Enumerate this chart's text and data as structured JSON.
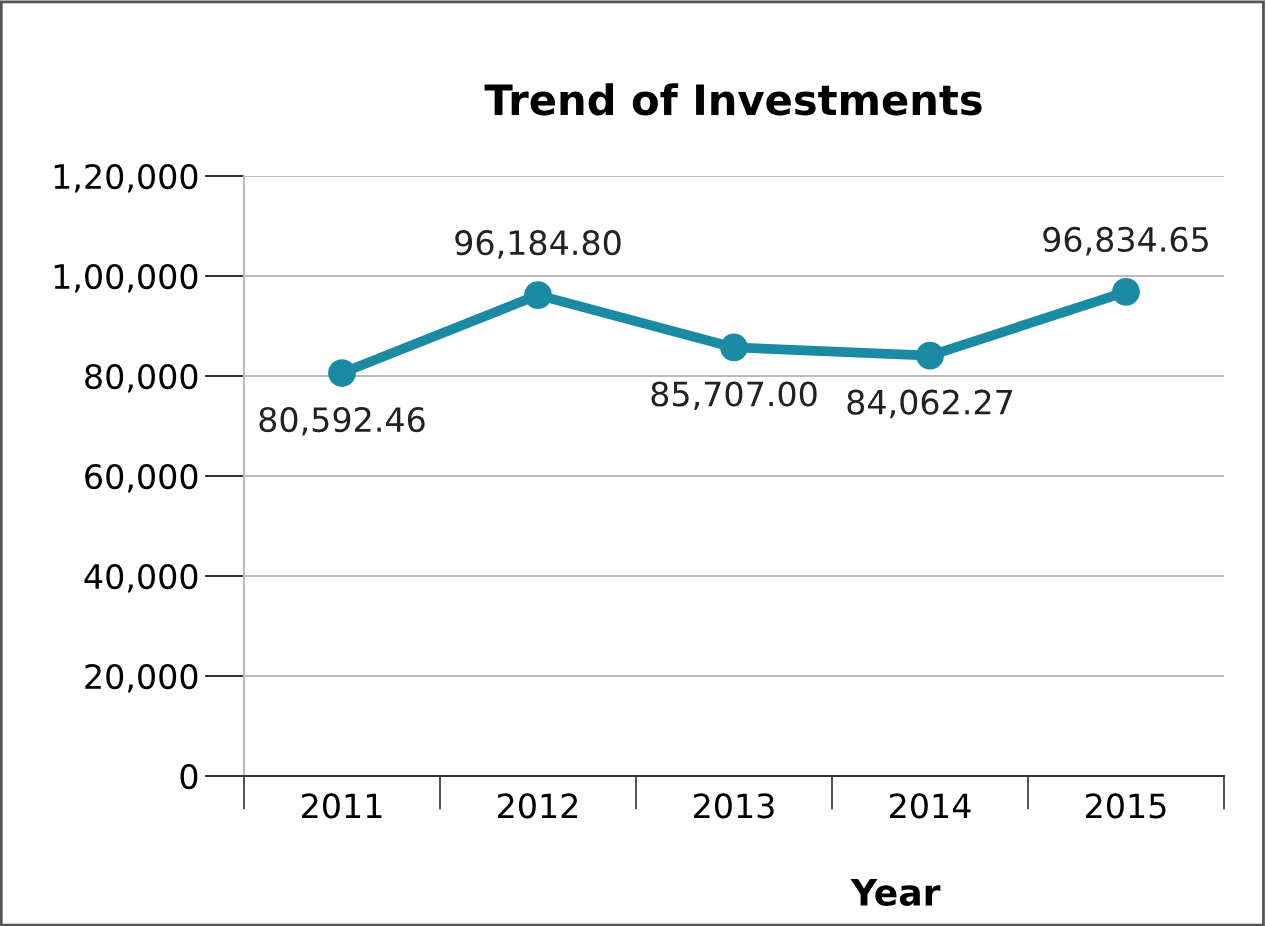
{
  "chart_data": {
    "type": "line",
    "title": "Trend of Investments",
    "xlabel": "Year",
    "categories": [
      "2011",
      "2012",
      "2013",
      "2014",
      "2015"
    ],
    "series": [
      {
        "color": "#1b8ba3",
        "values": [
          80592.46,
          96184.8,
          85707.0,
          84062.27,
          96834.65
        ],
        "value_labels": [
          "80,592.46",
          "96,184.80",
          "85,707.00",
          "84,062.27",
          "96,834.65"
        ]
      }
    ],
    "ylim": [
      0,
      120000
    ],
    "yticks": [
      0,
      {
        "value": 20000,
        "label": "20,000"
      },
      {
        "value": 40000,
        "label": "40,000"
      },
      {
        "value": 60000,
        "label": "60,000"
      },
      {
        "value": 80000,
        "label": "80,000"
      },
      {
        "value": 100000,
        "label": "1,00,000"
      },
      {
        "value": 120000,
        "label": "1,20,000"
      }
    ],
    "grid": "y",
    "marker": "circle",
    "line_style": "solid",
    "legend": false
  }
}
